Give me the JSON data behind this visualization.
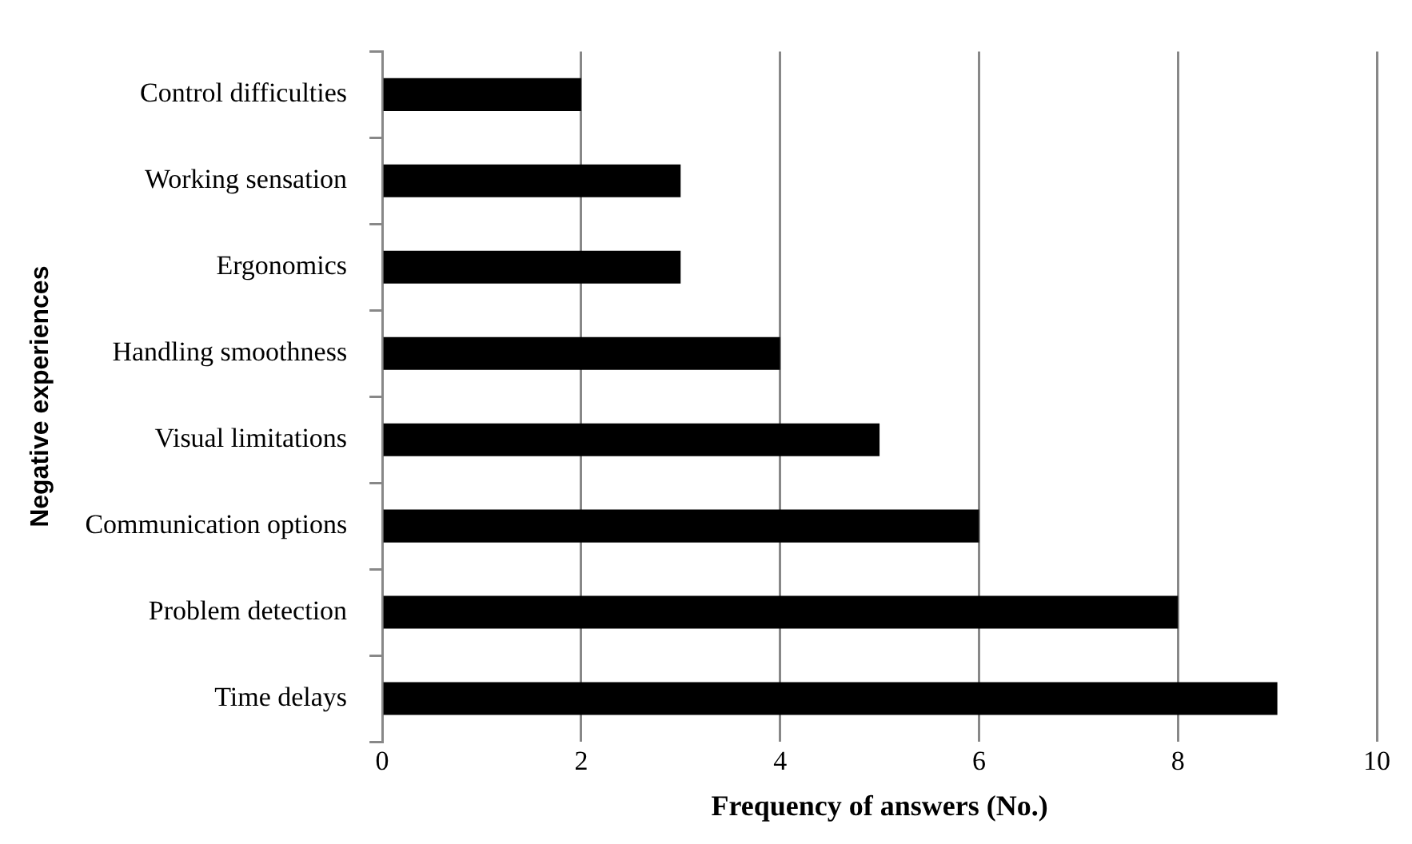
{
  "chart_data": {
    "type": "bar",
    "orientation": "horizontal",
    "xlabel": "Frequency of answers (No.)",
    "ylabel": "Negative experiences",
    "categories": [
      "Control difficulties",
      "Working sensation",
      "Ergonomics",
      "Handling smoothness",
      "Visual limitations",
      "Communication options",
      "Problem detection",
      "Time delays"
    ],
    "values": [
      2,
      3,
      3,
      4,
      5,
      6,
      8,
      9
    ],
    "color": "#000000",
    "xlim": [
      0,
      10
    ],
    "xticks": [
      0,
      2,
      4,
      6,
      8,
      10
    ],
    "grid": "x",
    "legend": false
  }
}
